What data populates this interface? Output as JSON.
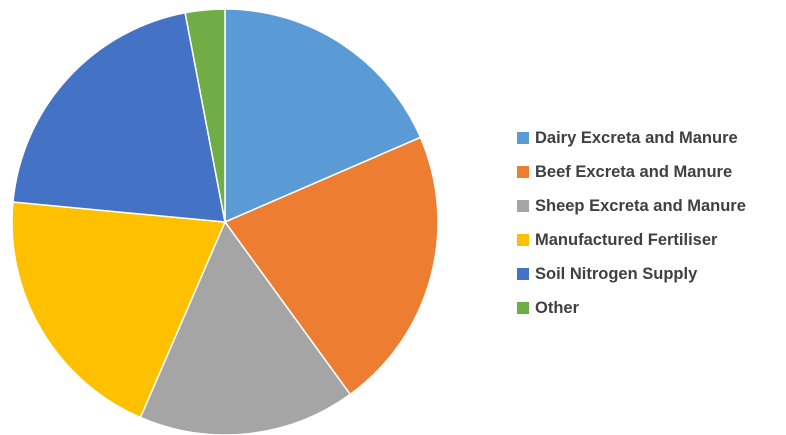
{
  "chart_data": {
    "type": "pie",
    "categories": [
      "Dairy Excreta and Manure",
      "Beef Excreta and Manure",
      "Sheep Excreta and Manure",
      "Manufactured Fertiliser",
      "Soil Nitrogen Supply",
      "Other"
    ],
    "values": [
      18.5,
      21.5,
      16.5,
      20.0,
      20.5,
      3.0
    ],
    "colors": [
      "#5B9BD5",
      "#ED7D31",
      "#A5A5A5",
      "#FFC000",
      "#4472C4",
      "#70AD47"
    ],
    "start_angle_deg": 0,
    "direction": "clockwise",
    "legend_position": "right",
    "title": ""
  }
}
